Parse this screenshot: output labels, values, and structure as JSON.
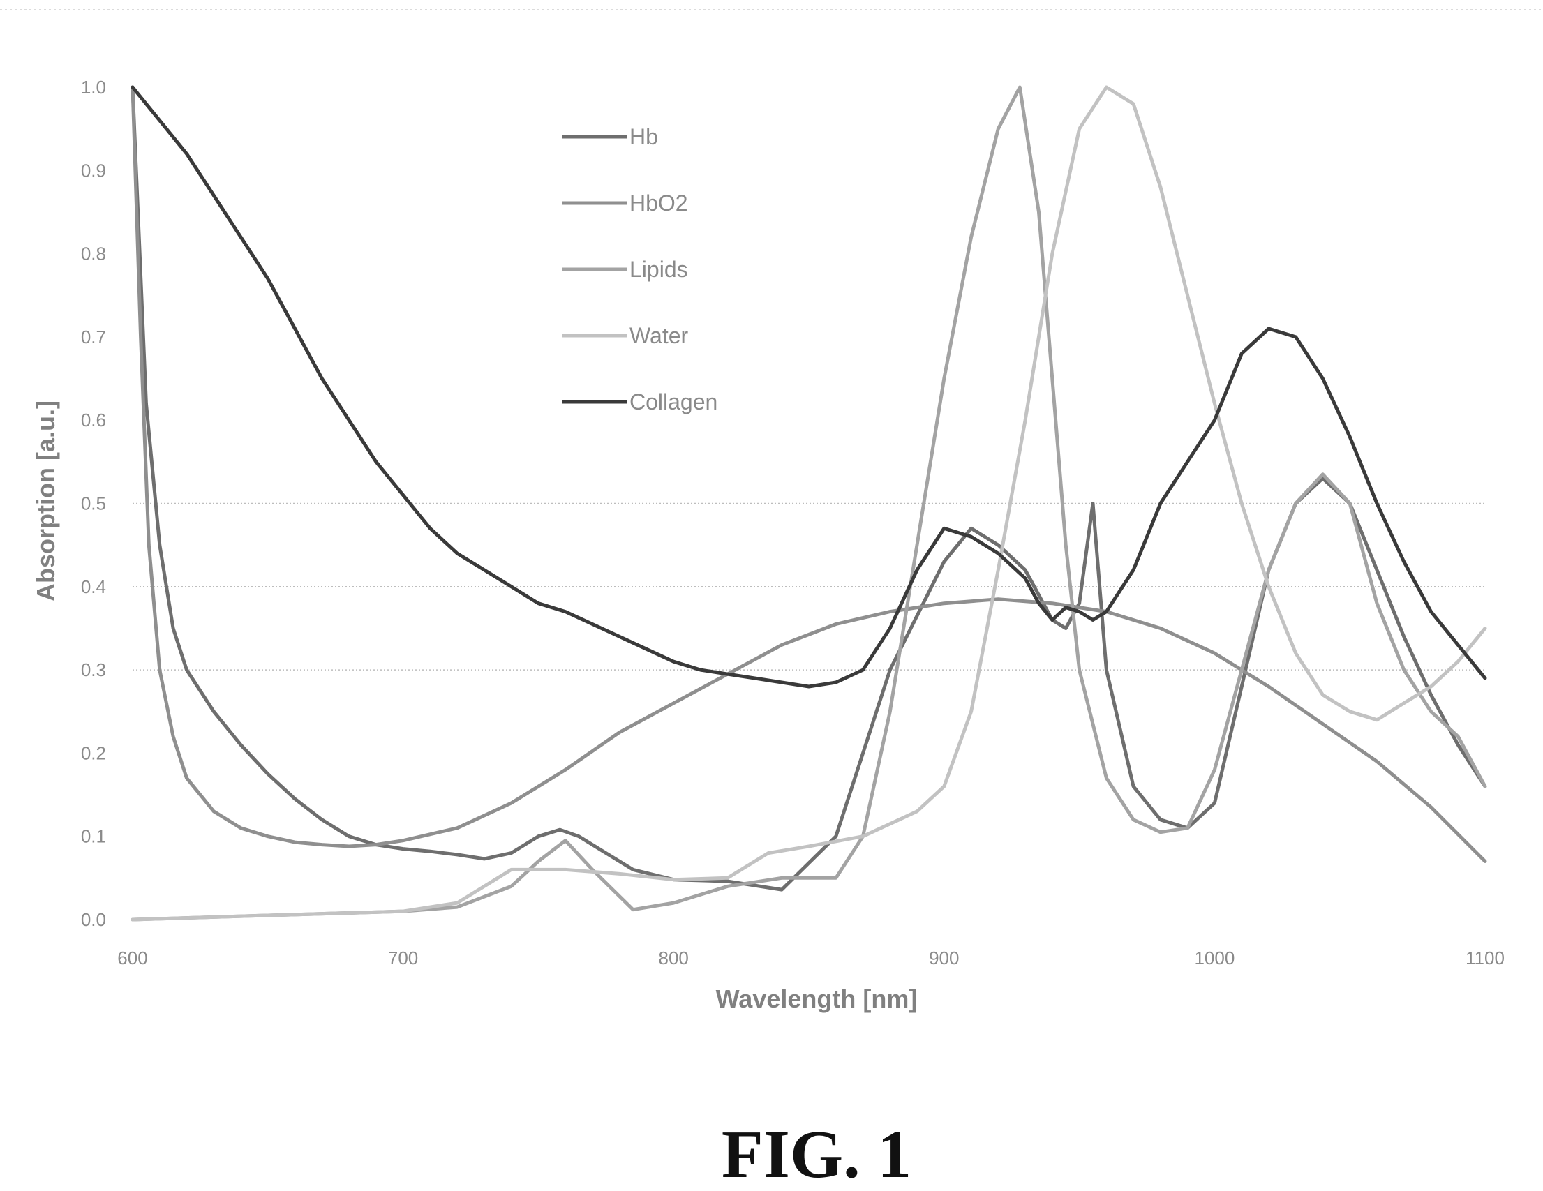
{
  "figure_label": "FIG. 1",
  "colors": {
    "Hb": "#6e6e6e",
    "HbO2": "#8f8f8f",
    "Lipids": "#a3a3a3",
    "Water": "#c2c2c2",
    "Collagen": "#3a3a3a"
  },
  "chart_data": {
    "type": "line",
    "xlabel": "Wavelength [nm]",
    "ylabel": "Absorption [a.u.]",
    "xlim": [
      600,
      1100
    ],
    "ylim": [
      0,
      1.0
    ],
    "xticks": [
      "600",
      "700",
      "800",
      "900",
      "1000",
      "1100"
    ],
    "yticks": [
      "0.0",
      "0.1",
      "0.2",
      "0.3",
      "0.4",
      "0.5",
      "0.6",
      "0.7",
      "0.8",
      "0.9",
      "1.0"
    ],
    "gridlines_y": [
      0.3,
      0.4,
      0.5
    ],
    "legend_position": "top-center",
    "series": [
      {
        "name": "Hb",
        "x": [
          600,
          605,
          610,
          615,
          620,
          630,
          640,
          650,
          660,
          670,
          680,
          690,
          700,
          710,
          720,
          730,
          740,
          750,
          758,
          765,
          775,
          785,
          800,
          820,
          840,
          860,
          880,
          900,
          910,
          920,
          930,
          940,
          945,
          950,
          955,
          960,
          970,
          980,
          990,
          1000,
          1010,
          1020,
          1030,
          1040,
          1050,
          1060,
          1070,
          1080,
          1090,
          1100
        ],
        "y": [
          1.0,
          0.62,
          0.45,
          0.35,
          0.3,
          0.25,
          0.21,
          0.175,
          0.145,
          0.12,
          0.1,
          0.09,
          0.085,
          0.082,
          0.078,
          0.073,
          0.08,
          0.1,
          0.108,
          0.1,
          0.08,
          0.06,
          0.048,
          0.046,
          0.036,
          0.1,
          0.3,
          0.43,
          0.47,
          0.45,
          0.42,
          0.36,
          0.35,
          0.38,
          0.5,
          0.3,
          0.16,
          0.12,
          0.11,
          0.14,
          0.28,
          0.42,
          0.5,
          0.53,
          0.5,
          0.42,
          0.34,
          0.27,
          0.21,
          0.16
        ]
      },
      {
        "name": "HbO2",
        "x": [
          600,
          603,
          606,
          610,
          615,
          620,
          630,
          640,
          650,
          660,
          670,
          680,
          690,
          700,
          720,
          740,
          760,
          780,
          800,
          820,
          840,
          860,
          880,
          900,
          920,
          940,
          960,
          980,
          1000,
          1020,
          1040,
          1060,
          1080,
          1100
        ],
        "y": [
          1.0,
          0.7,
          0.45,
          0.3,
          0.22,
          0.17,
          0.13,
          0.11,
          0.1,
          0.093,
          0.09,
          0.088,
          0.09,
          0.095,
          0.11,
          0.14,
          0.18,
          0.225,
          0.26,
          0.295,
          0.33,
          0.355,
          0.37,
          0.38,
          0.385,
          0.38,
          0.37,
          0.35,
          0.32,
          0.28,
          0.235,
          0.19,
          0.135,
          0.07
        ]
      },
      {
        "name": "Lipids",
        "x": [
          600,
          650,
          700,
          720,
          740,
          750,
          760,
          770,
          785,
          800,
          820,
          840,
          860,
          870,
          880,
          890,
          900,
          910,
          920,
          928,
          935,
          940,
          945,
          950,
          960,
          970,
          980,
          990,
          1000,
          1010,
          1020,
          1030,
          1040,
          1050,
          1060,
          1070,
          1080,
          1090,
          1100
        ],
        "y": [
          0.0,
          0.005,
          0.01,
          0.015,
          0.04,
          0.07,
          0.095,
          0.06,
          0.012,
          0.02,
          0.04,
          0.05,
          0.05,
          0.1,
          0.25,
          0.45,
          0.65,
          0.82,
          0.95,
          1.0,
          0.85,
          0.65,
          0.45,
          0.3,
          0.17,
          0.12,
          0.105,
          0.11,
          0.18,
          0.3,
          0.42,
          0.5,
          0.535,
          0.5,
          0.38,
          0.3,
          0.25,
          0.22,
          0.16
        ]
      },
      {
        "name": "Water",
        "x": [
          600,
          650,
          700,
          720,
          730,
          740,
          760,
          780,
          800,
          820,
          835,
          850,
          870,
          880,
          890,
          900,
          910,
          920,
          930,
          940,
          950,
          960,
          970,
          980,
          990,
          1000,
          1010,
          1020,
          1030,
          1040,
          1050,
          1060,
          1070,
          1080,
          1090,
          1100
        ],
        "y": [
          0.0,
          0.005,
          0.01,
          0.02,
          0.04,
          0.06,
          0.06,
          0.055,
          0.048,
          0.05,
          0.08,
          0.088,
          0.1,
          0.115,
          0.13,
          0.16,
          0.25,
          0.42,
          0.6,
          0.8,
          0.95,
          1.0,
          0.98,
          0.88,
          0.75,
          0.62,
          0.5,
          0.4,
          0.32,
          0.27,
          0.25,
          0.24,
          0.26,
          0.28,
          0.31,
          0.35
        ]
      },
      {
        "name": "Collagen",
        "x": [
          600,
          610,
          620,
          630,
          640,
          650,
          660,
          670,
          680,
          690,
          700,
          710,
          720,
          730,
          740,
          750,
          760,
          770,
          780,
          790,
          800,
          810,
          820,
          830,
          840,
          850,
          860,
          870,
          880,
          890,
          900,
          910,
          920,
          930,
          935,
          940,
          945,
          950,
          955,
          960,
          970,
          980,
          990,
          1000,
          1010,
          1020,
          1030,
          1040,
          1050,
          1060,
          1070,
          1080,
          1090,
          1100
        ],
        "y": [
          1.0,
          0.96,
          0.92,
          0.87,
          0.82,
          0.77,
          0.71,
          0.65,
          0.6,
          0.55,
          0.51,
          0.47,
          0.44,
          0.42,
          0.4,
          0.38,
          0.37,
          0.355,
          0.34,
          0.325,
          0.31,
          0.3,
          0.295,
          0.29,
          0.285,
          0.28,
          0.285,
          0.3,
          0.35,
          0.42,
          0.47,
          0.46,
          0.44,
          0.41,
          0.38,
          0.36,
          0.375,
          0.37,
          0.36,
          0.37,
          0.42,
          0.5,
          0.55,
          0.6,
          0.68,
          0.71,
          0.7,
          0.65,
          0.58,
          0.5,
          0.43,
          0.37,
          0.33,
          0.29
        ]
      }
    ]
  }
}
